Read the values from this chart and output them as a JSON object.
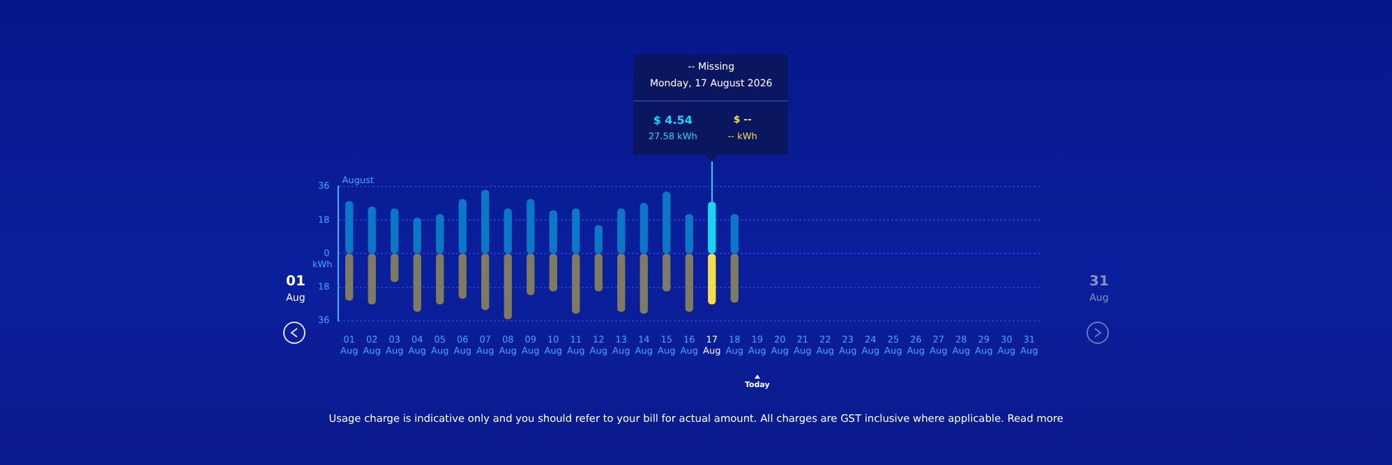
{
  "chart_data": {
    "type": "bar",
    "categories": [
      "01 Aug",
      "02 Aug",
      "03 Aug",
      "04 Aug",
      "05 Aug",
      "06 Aug",
      "07 Aug",
      "08 Aug",
      "09 Aug",
      "10 Aug",
      "11 Aug",
      "12 Aug",
      "13 Aug",
      "14 Aug",
      "15 Aug",
      "16 Aug",
      "17 Aug",
      "18 Aug",
      "19 Aug",
      "20 Aug",
      "21 Aug",
      "22 Aug",
      "23 Aug",
      "24 Aug",
      "25 Aug",
      "26 Aug",
      "27 Aug",
      "28 Aug",
      "29 Aug",
      "30 Aug",
      "31 Aug"
    ],
    "series": [
      {
        "color": "#0a78c4",
        "colors": [
          "#0a78c4",
          "#0a78c4",
          "#0a78c4",
          "#0a78c4",
          "#0a78c4",
          "#0a78c4",
          "#0a78c4",
          "#0a78c4",
          "#0a78c4",
          "#0a78c4",
          "#0a78c4",
          "#0a78c4",
          "#0a78c4",
          "#0a78c4",
          "#0a78c4",
          "#0a78c4",
          "#18d6f0",
          "#0a78c4",
          "#0a78c4",
          "#0a78c4",
          "#0a78c4",
          "#0a78c4",
          "#0a78c4",
          "#0a78c4",
          "#0a78c4",
          "#0a78c4",
          "#0a78c4",
          "#0a78c4",
          "#0a78c4",
          "#0a78c4",
          "#0a78c4"
        ],
        "values": [
          28,
          25,
          24,
          19,
          21,
          29,
          34,
          24,
          29,
          23,
          24,
          15,
          24,
          27,
          33,
          21,
          27.58,
          21,
          null,
          null,
          null,
          null,
          null,
          null,
          null,
          null,
          null,
          null,
          null,
          null,
          null
        ]
      },
      {
        "color": "#7f7a62",
        "colors": [
          "#7f7a62",
          "#7f7a62",
          "#7f7a62",
          "#7f7a62",
          "#7f7a62",
          "#7f7a62",
          "#7f7a62",
          "#7f7a62",
          "#7f7a62",
          "#7f7a62",
          "#7f7a62",
          "#7f7a62",
          "#7f7a62",
          "#7f7a62",
          "#7f7a62",
          "#7f7a62",
          "#f2df48",
          "#7f7a62",
          "#7f7a62",
          "#7f7a62",
          "#7f7a62",
          "#7f7a62",
          "#7f7a62",
          "#7f7a62",
          "#7f7a62",
          "#7f7a62",
          "#7f7a62",
          "#7f7a62",
          "#7f7a62",
          "#7f7a62",
          "#7f7a62"
        ],
        "values": [
          -25,
          -27,
          -15,
          -31,
          -27,
          -24,
          -30,
          -35,
          -22,
          -20,
          -32,
          -20,
          -31,
          -32,
          -20,
          -31,
          -27,
          -26,
          null,
          null,
          null,
          null,
          null,
          null,
          null,
          null,
          null,
          null,
          null,
          null,
          null
        ]
      }
    ],
    "ylabel": "kWh",
    "ylim": [
      -36,
      36
    ],
    "yticks": [
      {
        "value": -36,
        "label": "36"
      },
      {
        "value": -18,
        "label": "18"
      },
      0,
      18,
      36
    ],
    "grid": "y",
    "stacked": true,
    "legend": false,
    "annotations": [
      "August",
      "01 Aug",
      "31 Aug",
      "-- Missing",
      "Monday, 17 August 2026",
      "$ 4.54",
      "27.58 kWh",
      "$ --",
      "-- kWh",
      "Today",
      "Usage charge is indicative only and you should refer to your bill for actual amount. All charges are GST inclusive where applicable. Read more"
    ]
  }
}
